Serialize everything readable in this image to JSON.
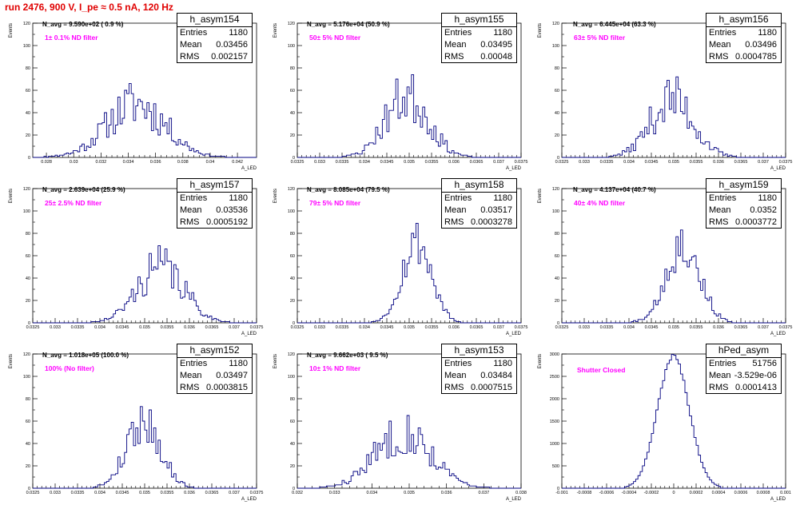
{
  "header": {
    "run_title": "run 2476,   900 V, I_pe ≈ 0.5 nA, 120 Hz"
  },
  "colors": {
    "title": "#e00000",
    "histogram": "#000080",
    "filter_label": "#ff00ff",
    "frame": "#000000"
  },
  "chart_data": [
    {
      "type": "bar",
      "histogram_name": "h_asym154",
      "stats": {
        "entries_label": "Entries",
        "entries": "1180",
        "mean_label": "Mean",
        "mean": "0.03456",
        "rms_label": "RMS",
        "rms": "0.002157"
      },
      "n_avg_label": "N_avg = 9.590e+02 ( 0.9 %)",
      "filter_label": "1± 0.1% ND filter",
      "xlabel": "A_LED",
      "ylabel": "Events",
      "xlim": [
        0.027,
        0.0434
      ],
      "ylim": [
        0,
        120
      ],
      "xticks": [
        "0.028",
        "0.03",
        "0.032",
        "0.034",
        "0.036",
        "0.038",
        "0.04",
        "0.042"
      ],
      "xtick_values": [
        0.028,
        0.03,
        0.032,
        0.034,
        0.036,
        0.038,
        0.04,
        0.042
      ],
      "yticks": [
        "0",
        "20",
        "40",
        "60",
        "80",
        "100",
        "120"
      ],
      "mean_value": 0.03456,
      "rms_value": 0.002157,
      "entries_value": 1180,
      "peak": 48,
      "noise": 0.45,
      "seed": 11
    },
    {
      "type": "bar",
      "histogram_name": "h_asym155",
      "stats": {
        "entries_label": "Entries",
        "entries": "1180",
        "mean_label": "Mean",
        "mean": "0.03495",
        "rms_label": "RMS",
        "rms": "0.00048"
      },
      "n_avg_label": "N_avg = 5.176e+04 (50.9 %)",
      "filter_label": "50± 5% ND filter",
      "xlabel": "A_LED",
      "ylabel": "Events",
      "xlim": [
        0.0325,
        0.0375
      ],
      "ylim": [
        0,
        120
      ],
      "xticks": [
        "0.0325",
        "0.033",
        "0.0335",
        "0.034",
        "0.0345",
        "0.035",
        "0.0355",
        "0.036",
        "0.0365",
        "0.037",
        "0.0375"
      ],
      "xtick_values": [
        0.0325,
        0.033,
        0.0335,
        0.034,
        0.0345,
        0.035,
        0.0355,
        0.036,
        0.0365,
        0.037,
        0.0375
      ],
      "yticks": [
        "0",
        "20",
        "40",
        "60",
        "80",
        "100",
        "120"
      ],
      "mean_value": 0.03495,
      "rms_value": 0.00048,
      "entries_value": 1180,
      "peak": 55,
      "noise": 0.45,
      "seed": 23
    },
    {
      "type": "bar",
      "histogram_name": "h_asym156",
      "stats": {
        "entries_label": "Entries",
        "entries": "1180",
        "mean_label": "Mean",
        "mean": "0.03496",
        "rms_label": "RMS",
        "rms": "0.0004785"
      },
      "n_avg_label": "N_avg = 6.445e+04 (63.3 %)",
      "filter_label": "63± 5% ND filter",
      "xlabel": "A_LED",
      "ylabel": "Events",
      "xlim": [
        0.0325,
        0.0375
      ],
      "ylim": [
        0,
        120
      ],
      "xticks": [
        "0.0325",
        "0.033",
        "0.0335",
        "0.034",
        "0.0345",
        "0.035",
        "0.0355",
        "0.036",
        "0.0365",
        "0.037",
        "0.0375"
      ],
      "xtick_values": [
        0.0325,
        0.033,
        0.0335,
        0.034,
        0.0345,
        0.035,
        0.0355,
        0.036,
        0.0365,
        0.037,
        0.0375
      ],
      "yticks": [
        "0",
        "20",
        "40",
        "60",
        "80",
        "100",
        "120"
      ],
      "mean_value": 0.03496,
      "rms_value": 0.0004785,
      "entries_value": 1180,
      "peak": 52,
      "noise": 0.45,
      "seed": 37
    },
    {
      "type": "bar",
      "histogram_name": "h_asym157",
      "stats": {
        "entries_label": "Entries",
        "entries": "1180",
        "mean_label": "Mean",
        "mean": "0.03536",
        "rms_label": "RMS",
        "rms": "0.0005192"
      },
      "n_avg_label": "N_avg = 2.639e+04 (25.9 %)",
      "filter_label": "25± 2.5% ND filter",
      "xlabel": "A_LED",
      "ylabel": "Events",
      "xlim": [
        0.0325,
        0.0375
      ],
      "ylim": [
        0,
        120
      ],
      "xticks": [
        "0.0325",
        "0.033",
        "0.0335",
        "0.034",
        "0.0345",
        "0.035",
        "0.0355",
        "0.036",
        "0.0365",
        "0.037",
        "0.0375"
      ],
      "xtick_values": [
        0.0325,
        0.033,
        0.0335,
        0.034,
        0.0345,
        0.035,
        0.0355,
        0.036,
        0.0365,
        0.037,
        0.0375
      ],
      "yticks": [
        "0",
        "20",
        "40",
        "60",
        "80",
        "100",
        "120"
      ],
      "mean_value": 0.03536,
      "rms_value": 0.0005192,
      "entries_value": 1180,
      "peak": 50,
      "noise": 0.4,
      "seed": 41
    },
    {
      "type": "bar",
      "histogram_name": "h_asym158",
      "stats": {
        "entries_label": "Entries",
        "entries": "1180",
        "mean_label": "Mean",
        "mean": "0.03517",
        "rms_label": "RMS",
        "rms": "0.0003278"
      },
      "n_avg_label": "N_avg = 8.085e+04 (79.5 %)",
      "filter_label": "79± 5% ND filter",
      "xlabel": "A_LED",
      "ylabel": "Events",
      "xlim": [
        0.0325,
        0.0375
      ],
      "ylim": [
        0,
        120
      ],
      "xticks": [
        "0.0325",
        "0.033",
        "0.0335",
        "0.034",
        "0.0345",
        "0.035",
        "0.0355",
        "0.036",
        "0.0365",
        "0.037",
        "0.0375"
      ],
      "xtick_values": [
        0.0325,
        0.033,
        0.0335,
        0.034,
        0.0345,
        0.035,
        0.0355,
        0.036,
        0.0365,
        0.037,
        0.0375
      ],
      "yticks": [
        "0",
        "20",
        "40",
        "60",
        "80",
        "100",
        "120"
      ],
      "mean_value": 0.03517,
      "rms_value": 0.0003278,
      "entries_value": 1180,
      "peak": 73,
      "noise": 0.3,
      "seed": 53
    },
    {
      "type": "bar",
      "histogram_name": "h_asym159",
      "stats": {
        "entries_label": "Entries",
        "entries": "1180",
        "mean_label": "Mean",
        "mean": "0.0352",
        "rms_label": "RMS",
        "rms": "0.0003772"
      },
      "n_avg_label": "N_avg = 4.137e+04 (40.7 %)",
      "filter_label": "40± 4% ND filter",
      "xlabel": "A_LED",
      "ylabel": "Events",
      "xlim": [
        0.0325,
        0.0375
      ],
      "ylim": [
        0,
        120
      ],
      "xticks": [
        "0.0325",
        "0.033",
        "0.0335",
        "0.034",
        "0.0345",
        "0.035",
        "0.0355",
        "0.036",
        "0.0365",
        "0.037",
        "0.0375"
      ],
      "xtick_values": [
        0.0325,
        0.033,
        0.0335,
        0.034,
        0.0345,
        0.035,
        0.0355,
        0.036,
        0.0365,
        0.037,
        0.0375
      ],
      "yticks": [
        "0",
        "20",
        "40",
        "60",
        "80",
        "100",
        "120"
      ],
      "mean_value": 0.0352,
      "rms_value": 0.0003772,
      "entries_value": 1180,
      "peak": 70,
      "noise": 0.3,
      "seed": 67
    },
    {
      "type": "bar",
      "histogram_name": "h_asym152",
      "stats": {
        "entries_label": "Entries",
        "entries": "1180",
        "mean_label": "Mean",
        "mean": "0.03497",
        "rms_label": "RMS",
        "rms": "0.0003815"
      },
      "n_avg_label": "N_avg = 1.018e+05 (100.0 %)",
      "filter_label": "100% (No filter)",
      "xlabel": "A_LED",
      "ylabel": "Events",
      "xlim": [
        0.0325,
        0.0375
      ],
      "ylim": [
        0,
        120
      ],
      "xticks": [
        "0.0325",
        "0.033",
        "0.0335",
        "0.034",
        "0.0345",
        "0.035",
        "0.0355",
        "0.036",
        "0.0365",
        "0.037",
        "0.0375"
      ],
      "xtick_values": [
        0.0325,
        0.033,
        0.0335,
        0.034,
        0.0345,
        0.035,
        0.0355,
        0.036,
        0.0365,
        0.037,
        0.0375
      ],
      "yticks": [
        "0",
        "20",
        "40",
        "60",
        "80",
        "100",
        "120"
      ],
      "mean_value": 0.03497,
      "rms_value": 0.0003815,
      "entries_value": 1180,
      "peak": 60,
      "noise": 0.35,
      "seed": 79
    },
    {
      "type": "bar",
      "histogram_name": "h_asym153",
      "stats": {
        "entries_label": "Entries",
        "entries": "1180",
        "mean_label": "Mean",
        "mean": "0.03484",
        "rms_label": "RMS",
        "rms": "0.0007515"
      },
      "n_avg_label": "N_avg = 9.662e+03 ( 9.5 %)",
      "filter_label": "10± 1% ND filter",
      "xlabel": "A_LED",
      "ylabel": "Events",
      "xlim": [
        0.032,
        0.038
      ],
      "ylim": [
        0,
        120
      ],
      "xticks": [
        "0.032",
        "0.033",
        "0.034",
        "0.035",
        "0.036",
        "0.037",
        "0.038"
      ],
      "xtick_values": [
        0.032,
        0.033,
        0.034,
        0.035,
        0.036,
        0.037,
        0.038
      ],
      "yticks": [
        "0",
        "20",
        "40",
        "60",
        "80",
        "100",
        "120"
      ],
      "mean_value": 0.03484,
      "rms_value": 0.0007515,
      "entries_value": 1180,
      "peak": 50,
      "noise": 0.4,
      "seed": 83
    },
    {
      "type": "bar",
      "histogram_name": "hPed_asym",
      "stats": {
        "entries_label": "Entries",
        "entries": "51756",
        "mean_label": "Mean",
        "mean": "-3.529e-06",
        "rms_label": "RMS",
        "rms": "0.0001413"
      },
      "n_avg_label": "",
      "filter_label": "Shutter Closed",
      "xlabel": "A_LED",
      "ylabel": "Events",
      "xlim": [
        -0.001,
        0.001
      ],
      "ylim": [
        0,
        3000
      ],
      "xticks": [
        "-0.001",
        "-0.0008",
        "-0.0006",
        "-0.0004",
        "-0.0002",
        "0",
        "0.0002",
        "0.0004",
        "0.0006",
        "0.0008",
        "0.001"
      ],
      "xtick_values": [
        -0.001,
        -0.0008,
        -0.0006,
        -0.0004,
        -0.0002,
        0,
        0.0002,
        0.0004,
        0.0006,
        0.0008,
        0.001
      ],
      "yticks": [
        "0",
        "500",
        "1000",
        "1500",
        "2000",
        "2500",
        "3000"
      ],
      "mean_value": -3.529e-06,
      "rms_value": 0.0001413,
      "entries_value": 51756,
      "peak": 2950,
      "noise": 0.02,
      "seed": 97
    }
  ]
}
